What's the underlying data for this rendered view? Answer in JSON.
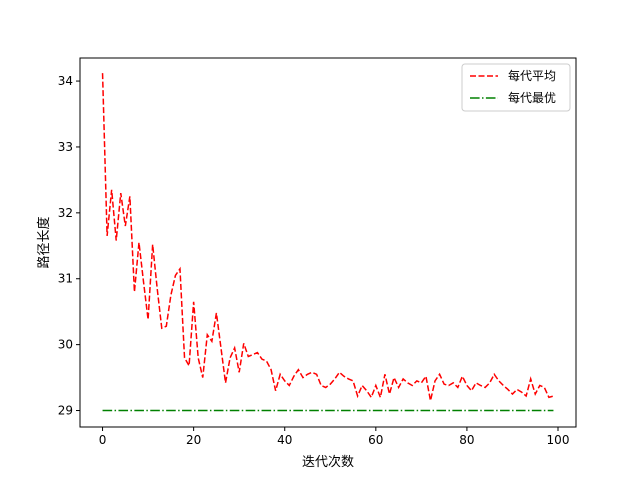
{
  "chart_data": {
    "type": "line",
    "title": "",
    "xlabel": "迭代次数",
    "ylabel": "路径长度",
    "xlim": [
      -4.95,
      103.95
    ],
    "ylim": [
      28.75,
      34.35
    ],
    "xticks": [
      0,
      20,
      40,
      60,
      80,
      100
    ],
    "yticks": [
      29,
      30,
      31,
      32,
      33,
      34
    ],
    "grid": false,
    "legend_position": "top-right",
    "series": [
      {
        "name": "每代平均",
        "color": "#ff0000",
        "linestyle": "dashed",
        "x": [
          0,
          1,
          2,
          3,
          4,
          5,
          6,
          7,
          8,
          9,
          10,
          11,
          12,
          13,
          14,
          15,
          16,
          17,
          18,
          19,
          20,
          21,
          22,
          23,
          24,
          25,
          26,
          27,
          28,
          29,
          30,
          31,
          32,
          33,
          34,
          35,
          36,
          37,
          38,
          39,
          40,
          41,
          42,
          43,
          44,
          45,
          46,
          47,
          48,
          49,
          50,
          51,
          52,
          53,
          54,
          55,
          56,
          57,
          58,
          59,
          60,
          61,
          62,
          63,
          64,
          65,
          66,
          67,
          68,
          69,
          70,
          71,
          72,
          73,
          74,
          75,
          76,
          77,
          78,
          79,
          80,
          81,
          82,
          83,
          84,
          85,
          86,
          87,
          88,
          89,
          90,
          91,
          92,
          93,
          94,
          95,
          96,
          97,
          98,
          99
        ],
        "y": [
          34.12,
          31.65,
          32.35,
          31.58,
          32.3,
          31.8,
          32.25,
          30.8,
          31.55,
          30.95,
          30.38,
          31.52,
          30.85,
          30.25,
          30.28,
          30.75,
          31.05,
          31.15,
          29.8,
          29.68,
          30.65,
          29.8,
          29.5,
          30.15,
          30.05,
          30.48,
          29.95,
          29.42,
          29.8,
          29.95,
          29.58,
          30.02,
          29.82,
          29.85,
          29.88,
          29.78,
          29.75,
          29.62,
          29.3,
          29.55,
          29.45,
          29.38,
          29.52,
          29.62,
          29.5,
          29.55,
          29.58,
          29.55,
          29.38,
          29.35,
          29.4,
          29.48,
          29.58,
          29.52,
          29.48,
          29.45,
          29.22,
          29.38,
          29.3,
          29.2,
          29.38,
          29.2,
          29.55,
          29.25,
          29.5,
          29.35,
          29.48,
          29.42,
          29.38,
          29.45,
          29.42,
          29.52,
          29.15,
          29.45,
          29.55,
          29.4,
          29.38,
          29.42,
          29.35,
          29.52,
          29.38,
          29.3,
          29.42,
          29.38,
          29.35,
          29.42,
          29.55,
          29.45,
          29.38,
          29.32,
          29.25,
          29.32,
          29.28,
          29.22,
          29.48,
          29.25,
          29.38,
          29.35,
          29.2,
          29.22
        ]
      },
      {
        "name": "每代最优",
        "color": "#008000",
        "linestyle": "dashdot",
        "x": [
          0,
          99
        ],
        "y": [
          29.0,
          29.0
        ]
      }
    ]
  }
}
